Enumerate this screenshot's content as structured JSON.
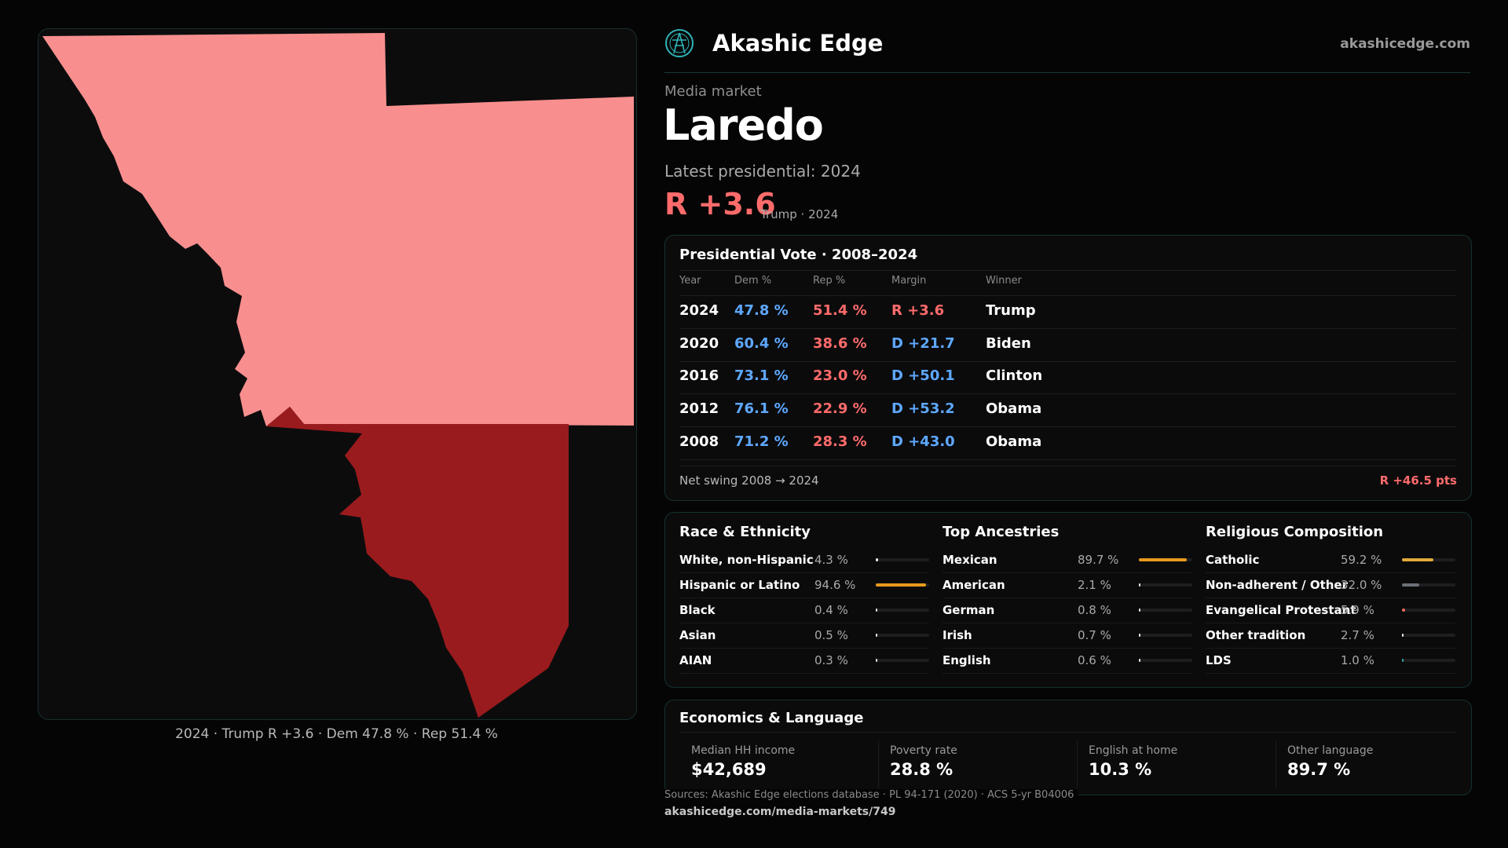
{
  "brand": {
    "name": "Akashic Edge",
    "site": "akashicedge.com"
  },
  "market": {
    "label": "Media market",
    "name": "Laredo",
    "latest_label": "Latest presidential: 2024",
    "margin": "R +3.6",
    "margin_sub": "Trump · 2024"
  },
  "map": {
    "caption": "2024 · Trump R +3.6 · Dem 47.8 % · Rep 51.4 %",
    "colors": {
      "light_red": "#f88f8e",
      "dark_red": "#9a1b1e",
      "background": "#0c0c0d"
    }
  },
  "vote_table": {
    "title": "Presidential Vote · 2008–2024",
    "headers": [
      "Year",
      "Dem %",
      "Rep %",
      "Margin",
      "Winner"
    ],
    "rows": [
      {
        "year": "2024",
        "dem": "47.8 %",
        "rep": "51.4 %",
        "margin": "R +3.6",
        "winner": "Trump"
      },
      {
        "year": "2020",
        "dem": "60.4 %",
        "rep": "38.6 %",
        "margin": "D +21.7",
        "winner": "Biden"
      },
      {
        "year": "2016",
        "dem": "73.1 %",
        "rep": "23.0 %",
        "margin": "D +50.1",
        "winner": "Clinton"
      },
      {
        "year": "2012",
        "dem": "76.1 %",
        "rep": "22.9 %",
        "margin": "D +53.2",
        "winner": "Obama"
      },
      {
        "year": "2008",
        "dem": "71.2 %",
        "rep": "28.3 %",
        "margin": "D +43.0",
        "winner": "Obama"
      }
    ],
    "swing_label": "Net swing 2008 → 2024",
    "swing_value": "R +46.5 pts"
  },
  "race": {
    "title": "Race & Ethnicity",
    "items": [
      {
        "label": "White, non-Hispanic",
        "value": "4.3 %",
        "pct": 4.3,
        "color": "#e8e8e8"
      },
      {
        "label": "Hispanic or Latino",
        "value": "94.6 %",
        "pct": 94.6,
        "color": "#e89a1c"
      },
      {
        "label": "Black",
        "value": "0.4 %",
        "pct": 0.4,
        "color": "#e8e8e8"
      },
      {
        "label": "Asian",
        "value": "0.5 %",
        "pct": 0.5,
        "color": "#e8e8e8"
      },
      {
        "label": "AIAN",
        "value": "0.3 %",
        "pct": 0.3,
        "color": "#e8e8e8"
      }
    ]
  },
  "ancestry": {
    "title": "Top Ancestries",
    "items": [
      {
        "label": "Mexican",
        "value": "89.7 %",
        "pct": 89.7,
        "color": "#e89a1c"
      },
      {
        "label": "American",
        "value": "2.1 %",
        "pct": 2.1,
        "color": "#e8e8e8"
      },
      {
        "label": "German",
        "value": "0.8 %",
        "pct": 0.8,
        "color": "#e8e8e8"
      },
      {
        "label": "Irish",
        "value": "0.7 %",
        "pct": 0.7,
        "color": "#e8e8e8"
      },
      {
        "label": "English",
        "value": "0.6 %",
        "pct": 0.6,
        "color": "#e8e8e8"
      }
    ]
  },
  "religion": {
    "title": "Religious Composition",
    "items": [
      {
        "label": "Catholic",
        "value": "59.2 %",
        "pct": 59.2,
        "color": "#e0a93a"
      },
      {
        "label": "Non-adherent / Other",
        "value": "32.0 %",
        "pct": 32.0,
        "color": "#6b6f78"
      },
      {
        "label": "Evangelical Protestant",
        "value": "5.9 %",
        "pct": 5.9,
        "color": "#e86a5c"
      },
      {
        "label": "Other tradition",
        "value": "2.7 %",
        "pct": 2.7,
        "color": "#e8e8e8"
      },
      {
        "label": "LDS",
        "value": "1.0 %",
        "pct": 1.0,
        "color": "#3aa6a6"
      }
    ]
  },
  "economics": {
    "title": "Economics & Language",
    "items": [
      {
        "label": "Median HH income",
        "value": "$42,689"
      },
      {
        "label": "Poverty rate",
        "value": "28.8 %"
      },
      {
        "label": "English at home",
        "value": "10.3 %"
      },
      {
        "label": "Other language",
        "value": "89.7 %"
      }
    ]
  },
  "footer": {
    "sources": "Sources: Akashic Edge elections database · PL 94-171 (2020) · ACS 5-yr B04006",
    "url": "akashicedge.com/media-markets/749"
  }
}
